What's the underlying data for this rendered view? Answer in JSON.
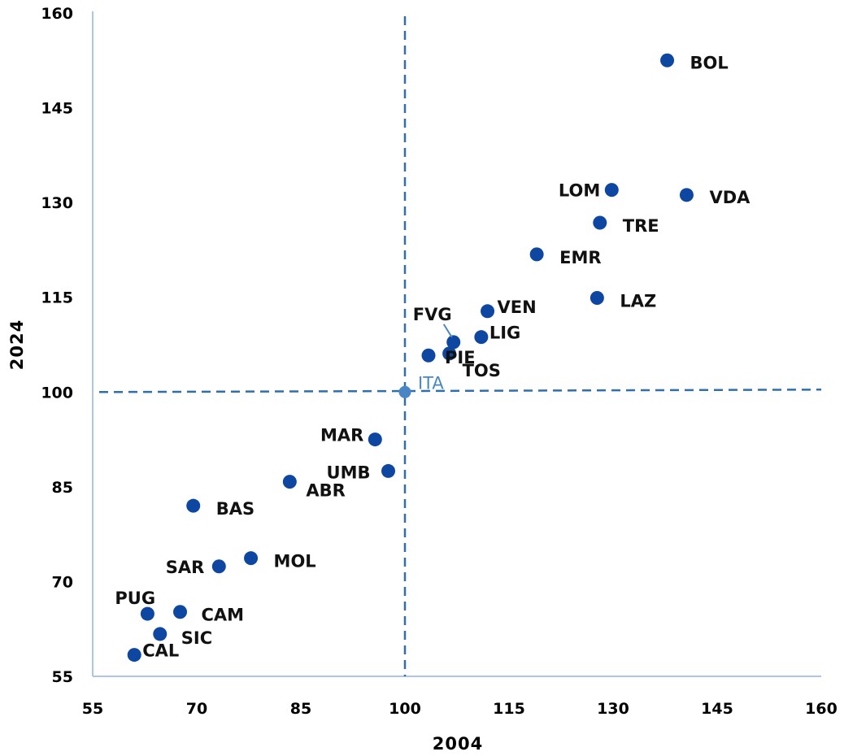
{
  "chart_data": {
    "type": "scatter",
    "title": "",
    "xlabel": "2004",
    "ylabel": "2024",
    "xlim": [
      55,
      160
    ],
    "ylim": [
      55,
      160
    ],
    "xticks": [
      "55",
      "70",
      "85",
      "100",
      "115",
      "130",
      "145",
      "160"
    ],
    "yticks": [
      "55",
      "70",
      "85",
      "100",
      "115",
      "130",
      "145",
      "160"
    ],
    "reference": {
      "label": "ITA",
      "x": 100,
      "y": 100,
      "color": "#4a86c5"
    },
    "point_color": "#0d47a1",
    "points": [
      {
        "label": "BOL",
        "x": 137.8,
        "y": 152.5
      },
      {
        "label": "VDA",
        "x": 140.6,
        "y": 131.2
      },
      {
        "label": "LOM",
        "x": 129.8,
        "y": 132.0
      },
      {
        "label": "TRE",
        "x": 128.1,
        "y": 126.8
      },
      {
        "label": "EMR",
        "x": 119.0,
        "y": 121.8
      },
      {
        "label": "LAZ",
        "x": 127.7,
        "y": 114.9
      },
      {
        "label": "VEN",
        "x": 111.9,
        "y": 112.8
      },
      {
        "label": "LIG",
        "x": 111.0,
        "y": 108.7
      },
      {
        "label": "FVG",
        "x": 107.0,
        "y": 107.9
      },
      {
        "label": "PIE",
        "x": 103.4,
        "y": 105.8
      },
      {
        "label": "TOS",
        "x": 106.4,
        "y": 106.1
      },
      {
        "label": "MAR",
        "x": 95.7,
        "y": 92.5
      },
      {
        "label": "UMB",
        "x": 97.6,
        "y": 87.5
      },
      {
        "label": "ABR",
        "x": 83.4,
        "y": 85.8
      },
      {
        "label": "BAS",
        "x": 69.5,
        "y": 82.0
      },
      {
        "label": "MOL",
        "x": 77.8,
        "y": 73.7
      },
      {
        "label": "SAR",
        "x": 73.2,
        "y": 72.4
      },
      {
        "label": "CAM",
        "x": 67.6,
        "y": 65.2
      },
      {
        "label": "PUG",
        "x": 62.9,
        "y": 64.9
      },
      {
        "label": "SIC",
        "x": 64.7,
        "y": 61.7
      },
      {
        "label": "CAL",
        "x": 61.0,
        "y": 58.4
      }
    ]
  }
}
